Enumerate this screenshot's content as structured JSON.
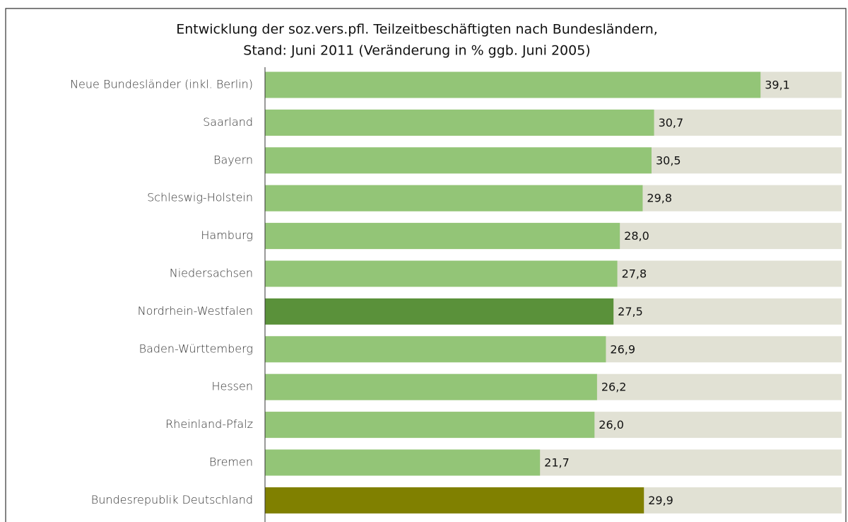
{
  "chart_data": {
    "type": "bar",
    "orientation": "horizontal",
    "title": [
      "Entwicklung der soz.vers.pfl. Teilzeitbeschäftigten nach Bundesländern,",
      "Stand: Juni 2011 (Veränderung in % ggb. Juni 2005)"
    ],
    "categories": [
      "Neue Bundesländer (inkl. Berlin)",
      "Saarland",
      "Bayern",
      "Schleswig-Holstein",
      "Hamburg",
      "Niedersachsen",
      "Nordrhein-Westfalen",
      "Baden-Württemberg",
      "Hessen",
      "Rheinland-Pfalz",
      "Bremen",
      "Bundesrepublik Deutschland"
    ],
    "values": [
      39.1,
      30.7,
      30.5,
      29.8,
      28.0,
      27.8,
      27.5,
      26.9,
      26.2,
      26.0,
      21.7,
      29.9
    ],
    "value_labels": [
      "39,1",
      "30,7",
      "30,5",
      "29,8",
      "28,0",
      "27,8",
      "27,5",
      "26,9",
      "26,2",
      "26,0",
      "21,7",
      "29,9"
    ],
    "colors": [
      "#93c577",
      "#93c577",
      "#93c577",
      "#93c577",
      "#93c577",
      "#93c577",
      "#5a913a",
      "#93c577",
      "#93c577",
      "#93c577",
      "#93c577",
      "#808000"
    ],
    "background_color": "#e1e1d4",
    "xlim": [
      0,
      45.5
    ]
  }
}
